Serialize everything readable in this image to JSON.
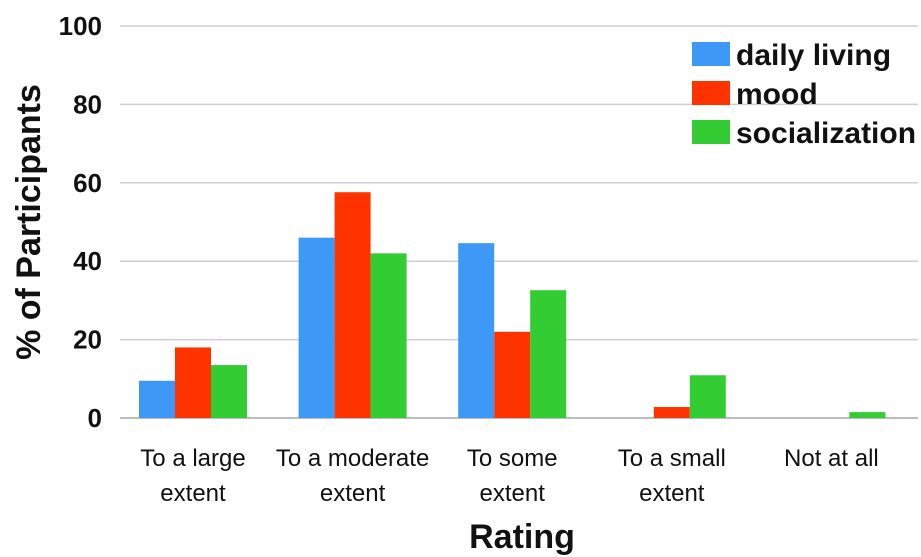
{
  "chart_data": {
    "type": "bar",
    "xlabel": "Rating",
    "ylabel": "% of Participants",
    "ylim": [
      0,
      100
    ],
    "yticks": [
      0,
      20,
      40,
      60,
      80,
      100
    ],
    "grid": true,
    "legend_position": "top-right",
    "categories": [
      [
        "To a large",
        "extent"
      ],
      [
        "To a moderate",
        "extent"
      ],
      [
        "To some",
        "extent"
      ],
      [
        "To a small",
        "extent"
      ],
      [
        "Not at all"
      ]
    ],
    "series": [
      {
        "name": "daily living",
        "color": "#3d99f5",
        "values": [
          9.5,
          46,
          44.6,
          0,
          0
        ]
      },
      {
        "name": "mood",
        "color": "#ff3300",
        "values": [
          18,
          57.6,
          22,
          2.8,
          0
        ]
      },
      {
        "name": "socialization",
        "color": "#33cc33",
        "values": [
          13.5,
          42,
          32.6,
          10.9,
          1.5
        ]
      }
    ]
  }
}
